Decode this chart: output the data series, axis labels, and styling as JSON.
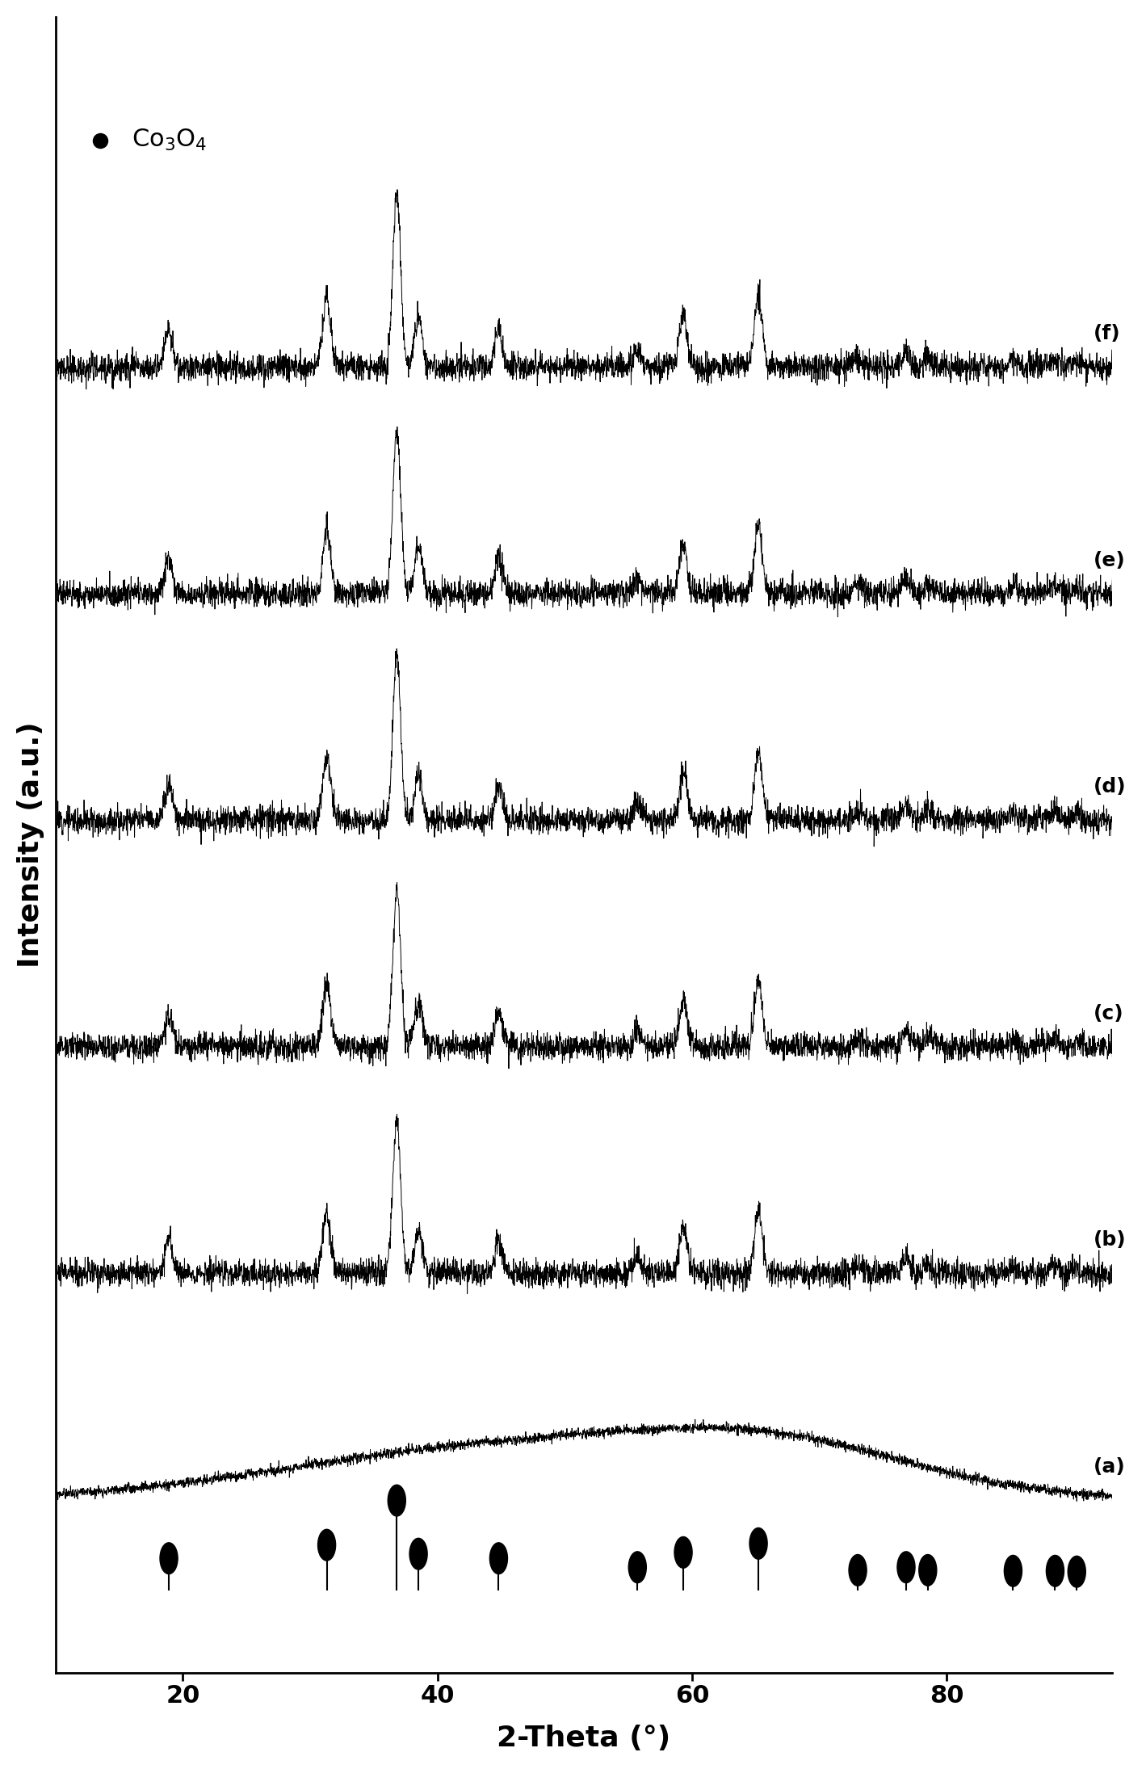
{
  "xlabel": "2-Theta (°)",
  "ylabel": "Intensity (a.u.)",
  "xlim": [
    10,
    93
  ],
  "labels": [
    "(a)",
    "(b)",
    "(c)",
    "(d)",
    "(e)",
    "(f)"
  ],
  "legend_text": "Co₃O₄",
  "co3o4_peaks": [
    18.9,
    31.3,
    36.8,
    38.5,
    44.8,
    55.7,
    59.3,
    65.2,
    73.0,
    76.8,
    78.5,
    85.2,
    88.5,
    90.2
  ],
  "co3o4_peak_heights": [
    0.22,
    0.4,
    1.0,
    0.28,
    0.22,
    0.1,
    0.3,
    0.42,
    0.06,
    0.1,
    0.06,
    0.05,
    0.05,
    0.04
  ],
  "ref_marker_positions": [
    18.9,
    31.3,
    36.8,
    38.5,
    44.8,
    55.7,
    59.3,
    65.2,
    73.0,
    76.8,
    78.5,
    85.2,
    88.5,
    90.2
  ],
  "ref_marker_heights": [
    0.22,
    0.4,
    1.0,
    0.28,
    0.22,
    0.1,
    0.3,
    0.42,
    0.06,
    0.1,
    0.06,
    0.05,
    0.05,
    0.04
  ],
  "background_color": "#ffffff",
  "line_color": "#000000",
  "figure_width": 14.19,
  "figure_height": 21.9,
  "dpi": 100
}
